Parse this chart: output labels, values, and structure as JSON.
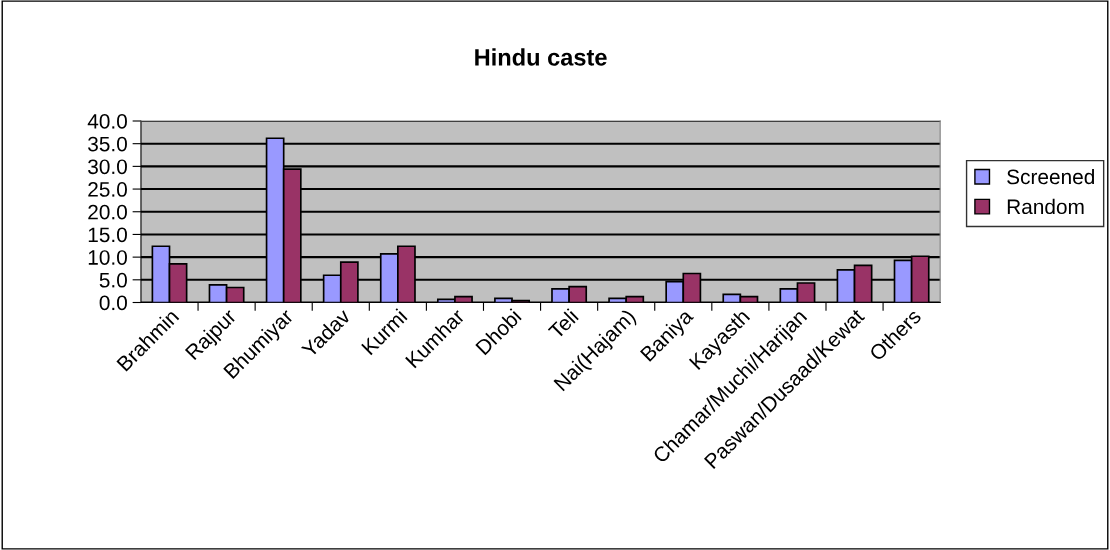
{
  "chart_data": {
    "type": "bar",
    "title": "Hindu caste",
    "categories": [
      "Brahmin",
      "Rajpur",
      "Bhumiyar",
      "Yadav",
      "Kurmi",
      "Kumhar",
      "Dhobi",
      "Teli",
      "Nai(Hajam)",
      "Baniya",
      "Kayasth",
      "Chamar/Muchi/Harijan",
      "Paswan/Dusaad/Kewat",
      "Others"
    ],
    "series": [
      {
        "name": "Screened",
        "color": "#9999ff",
        "values": [
          12.4,
          3.9,
          36.2,
          6.0,
          10.7,
          0.7,
          0.9,
          3.0,
          0.9,
          4.6,
          1.8,
          3.0,
          7.2,
          9.3
        ]
      },
      {
        "name": "Random",
        "color": "#993366",
        "values": [
          8.5,
          3.3,
          29.4,
          8.9,
          12.4,
          1.3,
          0.4,
          3.5,
          1.3,
          6.4,
          1.3,
          4.3,
          8.2,
          10.2
        ]
      }
    ],
    "ylim": [
      0,
      40
    ],
    "yticks": [
      {
        "value": 0,
        "label": "0.0"
      },
      {
        "value": 5,
        "label": "5.0"
      },
      {
        "value": 10,
        "label": "10.0"
      },
      {
        "value": 15,
        "label": "15.0"
      },
      {
        "value": 20,
        "label": "20.0"
      },
      {
        "value": 25,
        "label": "25.0"
      },
      {
        "value": 30,
        "label": "30.0"
      },
      {
        "value": 35,
        "label": "35.0"
      },
      {
        "value": 40,
        "label": "40.0"
      }
    ],
    "grid": "y",
    "legend": "right"
  }
}
